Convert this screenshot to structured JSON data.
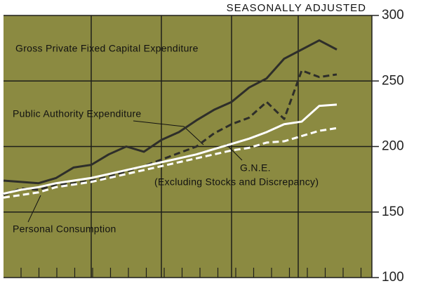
{
  "chart_data": {
    "type": "line",
    "subtitle": "SEASONALLY ADJUSTED",
    "categories": [
      null,
      null,
      null,
      null,
      null,
      null,
      null,
      null,
      null,
      null,
      null,
      null,
      null,
      null,
      null,
      null,
      null,
      null,
      null,
      null
    ],
    "series": [
      {
        "name": "Gross Private Fixed Capital Expenditure",
        "color": "#2e2e2a",
        "style": "solid",
        "values": [
          174,
          173,
          172,
          176,
          184,
          186,
          194,
          200,
          196,
          205,
          211,
          220,
          228,
          234,
          245,
          252,
          267,
          274,
          281,
          274
        ]
      },
      {
        "name": "Public Authority Expenditure",
        "color": "#2e2e2a",
        "style": "dashed",
        "values": [
          163,
          168,
          167,
          171,
          172,
          174,
          177,
          181,
          185,
          190,
          195,
          200,
          210,
          217,
          222,
          234,
          221,
          258,
          253,
          255
        ]
      },
      {
        "name": "G.N.E.",
        "color": "#ffffff",
        "style": "solid",
        "values": [
          164,
          167,
          169,
          172,
          174,
          176,
          179,
          182,
          185,
          188,
          191,
          194,
          198,
          202,
          206,
          211,
          217,
          219,
          231,
          232
        ]
      },
      {
        "name": "Personal Consumption",
        "color": "#ffffff",
        "style": "dashed",
        "values": [
          161,
          163,
          165,
          169,
          171,
          173,
          176,
          179,
          182,
          185,
          188,
          191,
          194,
          197,
          199,
          203,
          204,
          208,
          212,
          214
        ]
      }
    ],
    "annotations": [
      "(Excluding Stocks and Discrepancy)"
    ],
    "ylim": [
      100,
      300
    ],
    "yticks": [
      100,
      150,
      200,
      250,
      300
    ],
    "grid": true,
    "y_axis_side": "right",
    "background": "#8b8a41"
  }
}
